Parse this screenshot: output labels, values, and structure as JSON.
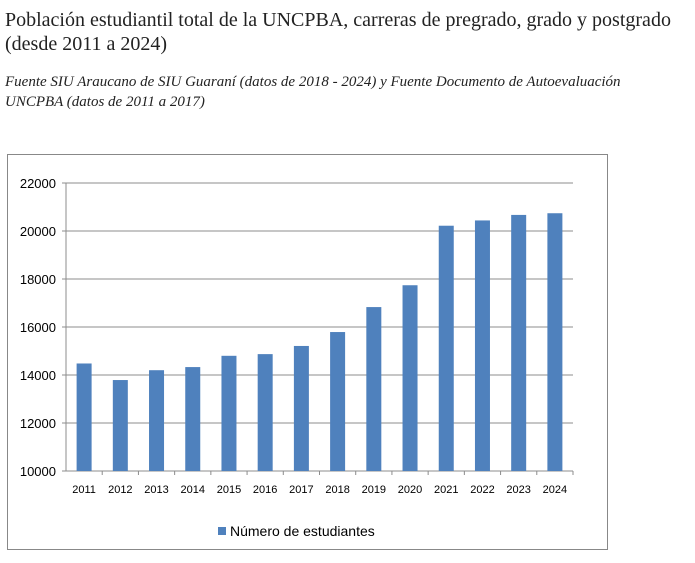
{
  "title": "Población estudiantil total de la UNCPBA, carreras de pregrado, grado y postgrado (desde 2011 a 2024)",
  "subtitle_line1": "Fuente SIU Araucano de SIU Guaraní (datos de 2018 - 2024) y Fuente Documento de Autoevaluación",
  "subtitle_line2": "UNCPBA (datos de 2011 a 2017)",
  "chart_data": {
    "type": "bar",
    "categories": [
      "2011",
      "2012",
      "2013",
      "2014",
      "2015",
      "2016",
      "2017",
      "2018",
      "2019",
      "2020",
      "2021",
      "2022",
      "2023",
      "2024"
    ],
    "series": [
      {
        "name": "Número de estudiantes",
        "values": [
          14480,
          13790,
          14200,
          14330,
          14800,
          14870,
          15210,
          15790,
          16830,
          17740,
          20220,
          20440,
          20670,
          20740
        ],
        "color": "#4f81bd"
      }
    ],
    "ylim": [
      10000,
      22000
    ],
    "yticks": [
      "10000",
      "12000",
      "14000",
      "16000",
      "18000",
      "20000",
      "22000"
    ],
    "grid": true,
    "legend": "bottom"
  }
}
